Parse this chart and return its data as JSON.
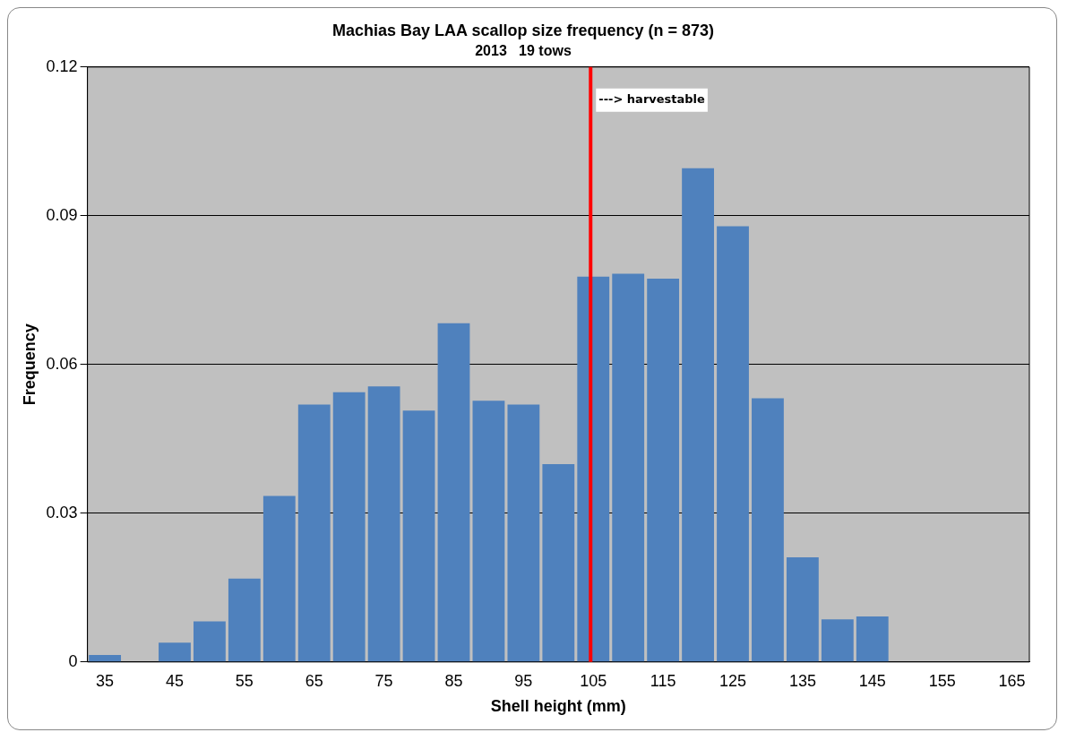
{
  "chart_data": {
    "type": "bar",
    "title": "Machias Bay LAA scallop size frequency (n = 873)",
    "subtitle": "2013   19 tows",
    "xlabel": "Shell height (mm)",
    "ylabel": "Frequency",
    "categories": [
      "35",
      null,
      "45",
      null,
      "55",
      null,
      "65",
      null,
      "75",
      null,
      "85",
      null,
      "95",
      null,
      "105",
      null,
      "115",
      null,
      "125",
      null,
      "135",
      null,
      "145",
      null,
      "155",
      null,
      "165"
    ],
    "values": [
      0.0014,
      0,
      0.0039,
      0.0082,
      0.0168,
      0.0335,
      0.0519,
      0.0544,
      0.0556,
      0.0507,
      0.0683,
      0.0527,
      0.0519,
      0.0399,
      0.0777,
      0.0783,
      0.0773,
      0.0996,
      0.0879,
      0.0532,
      0.0211,
      0.0086,
      0.0092,
      0,
      0,
      0,
      0
    ],
    "color": "#4f81bd",
    "ylim": [
      0,
      0.12
    ],
    "yticks": [
      0,
      0.03,
      0.06,
      0.09,
      0.12
    ],
    "grid": "y",
    "legend": false,
    "ref_lines": [
      {
        "axis": "x",
        "value": "105",
        "label": "---> harvestable",
        "color": "#ff0000"
      }
    ]
  }
}
